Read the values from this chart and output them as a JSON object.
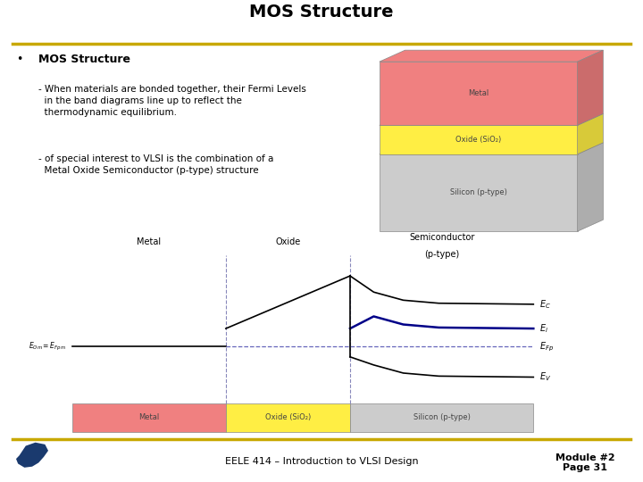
{
  "title": "MOS Structure",
  "title_fontsize": 14,
  "gold_line_color": "#C8A800",
  "background_color": "#FFFFFF",
  "bullet_text": "MOS Structure",
  "sub_bullet1": "- When materials are bonded together, their Fermi Levels\n  in the band diagrams line up to reflect the\n  thermodynamic equilibrium.",
  "sub_bullet2": "- of special interest to VLSI is the combination of a\n  Metal Oxide Semiconductor (p-type) structure",
  "footer_text": "EELE 414 – Introduction to VLSI Design",
  "module_text": "Module #2\nPage 31",
  "metal_color": "#F08080",
  "oxide_color": "#FFEE44",
  "silicon_color": "#CCCCCC",
  "metal_label": "Metal",
  "oxide_label": "Oxide (SiO₂)",
  "silicon_label": "Silicon (p-type)",
  "metal_label_3d": "Metal",
  "oxide_label_3d": "Oxide (SiO₂)",
  "silicon_label_3d": "Silicon (p-type)"
}
